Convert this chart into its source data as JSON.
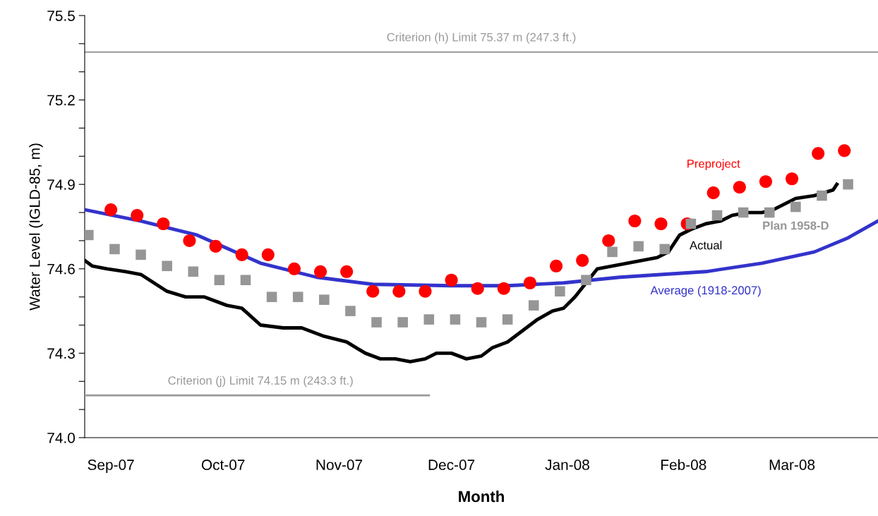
{
  "chart_data": {
    "type": "line",
    "xlabel": "Month",
    "ylabel": "Water Level (IGLD-85, m)",
    "xlim": [
      "2007-08-25",
      "2008-03-24"
    ],
    "xticks": [
      {
        "value": "2007-09-01",
        "label": "Sep-07"
      },
      {
        "value": "2007-10-01",
        "label": "Oct-07"
      },
      {
        "value": "2007-11-01",
        "label": "Nov-07"
      },
      {
        "value": "2007-12-01",
        "label": "Dec-07"
      },
      {
        "value": "2008-01-01",
        "label": "Jan-08"
      },
      {
        "value": "2008-02-01",
        "label": "Feb-08"
      },
      {
        "value": "2008-03-01",
        "label": "Mar-08"
      }
    ],
    "ylim": [
      74.0,
      75.5
    ],
    "yticks": [
      {
        "value": 74.0,
        "label": "74.0"
      },
      {
        "value": 74.1,
        "label": null
      },
      {
        "value": 74.2,
        "label": null
      },
      {
        "value": 74.3,
        "label": "74.3"
      },
      {
        "value": 74.4,
        "label": null
      },
      {
        "value": 74.5,
        "label": null
      },
      {
        "value": 74.6,
        "label": "74.6"
      },
      {
        "value": 74.7,
        "label": null
      },
      {
        "value": 74.8,
        "label": null
      },
      {
        "value": 74.9,
        "label": "74.9"
      },
      {
        "value": 75.0,
        "label": null
      },
      {
        "value": 75.1,
        "label": null
      },
      {
        "value": 75.2,
        "label": "75.2"
      },
      {
        "value": 75.3,
        "label": null
      },
      {
        "value": 75.4,
        "label": null
      },
      {
        "value": 75.5,
        "label": "75.5"
      }
    ],
    "grid": false,
    "legend": false,
    "series": [
      {
        "name": "Preproject",
        "type": "scatter",
        "marker": "circle",
        "color": "#ff0000",
        "x": [
          "2007-09-01",
          "2007-09-08",
          "2007-09-15",
          "2007-09-22",
          "2007-09-29",
          "2007-10-06",
          "2007-10-13",
          "2007-10-20",
          "2007-10-27",
          "2007-11-03",
          "2007-11-10",
          "2007-11-17",
          "2007-11-24",
          "2007-12-01",
          "2007-12-08",
          "2007-12-15",
          "2007-12-22",
          "2007-12-29",
          "2008-01-05",
          "2008-01-12",
          "2008-01-19",
          "2008-01-26",
          "2008-02-02",
          "2008-02-09",
          "2008-02-16",
          "2008-02-23",
          "2008-03-01",
          "2008-03-08",
          "2008-03-15"
        ],
        "values": [
          74.81,
          74.79,
          74.76,
          74.7,
          74.68,
          74.65,
          74.65,
          74.6,
          74.59,
          74.59,
          74.52,
          74.52,
          74.52,
          74.56,
          74.53,
          74.53,
          74.55,
          74.61,
          74.63,
          74.7,
          74.77,
          74.76,
          74.76,
          74.87,
          74.89,
          74.91,
          74.92,
          75.01,
          75.02
        ]
      },
      {
        "name": "Plan 1958-D",
        "type": "scatter",
        "marker": "square",
        "color": "#969696",
        "x": [
          "2007-08-26",
          "2007-09-02",
          "2007-09-09",
          "2007-09-16",
          "2007-09-23",
          "2007-09-30",
          "2007-10-07",
          "2007-10-14",
          "2007-10-21",
          "2007-10-28",
          "2007-11-04",
          "2007-11-11",
          "2007-11-18",
          "2007-11-25",
          "2007-12-02",
          "2007-12-09",
          "2007-12-16",
          "2007-12-23",
          "2007-12-30",
          "2008-01-06",
          "2008-01-13",
          "2008-01-20",
          "2008-01-27",
          "2008-02-03",
          "2008-02-10",
          "2008-02-17",
          "2008-02-24",
          "2008-03-02",
          "2008-03-09",
          "2008-03-16"
        ],
        "values": [
          74.72,
          74.67,
          74.65,
          74.61,
          74.59,
          74.56,
          74.56,
          74.5,
          74.5,
          74.49,
          74.45,
          74.41,
          74.41,
          74.42,
          74.42,
          74.41,
          74.42,
          74.47,
          74.52,
          74.56,
          74.66,
          74.68,
          74.67,
          74.76,
          74.79,
          74.8,
          74.8,
          74.82,
          74.86,
          74.9
        ]
      },
      {
        "name": "Actual",
        "marker": "none",
        "line_style": "solid",
        "color": "#000000",
        "x": [
          "2007-08-25",
          "2007-08-27",
          "2007-08-31",
          "2007-09-05",
          "2007-09-09",
          "2007-09-16",
          "2007-09-21",
          "2007-09-26",
          "2007-10-02",
          "2007-10-06",
          "2007-10-11",
          "2007-10-17",
          "2007-10-22",
          "2007-10-28",
          "2007-11-03",
          "2007-11-08",
          "2007-11-12",
          "2007-11-16",
          "2007-11-20",
          "2007-11-24",
          "2007-11-27",
          "2007-12-01",
          "2007-12-05",
          "2007-12-09",
          "2007-12-12",
          "2007-12-16",
          "2007-12-20",
          "2007-12-24",
          "2007-12-28",
          "2007-12-31",
          "2008-01-03",
          "2008-01-06",
          "2008-01-09",
          "2008-01-13",
          "2008-01-17",
          "2008-01-21",
          "2008-01-25",
          "2008-01-28",
          "2008-01-31",
          "2008-02-03",
          "2008-02-07",
          "2008-02-11",
          "2008-02-14",
          "2008-02-18",
          "2008-02-22",
          "2008-02-25",
          "2008-03-02",
          "2008-03-07",
          "2008-03-12",
          "2008-03-13"
        ],
        "values": [
          74.63,
          74.61,
          74.6,
          74.59,
          74.58,
          74.52,
          74.5,
          74.5,
          74.47,
          74.46,
          74.4,
          74.39,
          74.39,
          74.36,
          74.34,
          74.3,
          74.28,
          74.28,
          74.27,
          74.28,
          74.3,
          74.3,
          74.28,
          74.29,
          74.32,
          74.34,
          74.38,
          74.42,
          74.45,
          74.46,
          74.5,
          74.55,
          74.6,
          74.61,
          74.62,
          74.63,
          74.64,
          74.66,
          74.72,
          74.74,
          74.76,
          74.77,
          74.79,
          74.8,
          74.8,
          74.81,
          74.85,
          74.86,
          74.88,
          74.9
        ]
      },
      {
        "name": "Average (1918-2007)",
        "marker": "none",
        "line_style": "solid",
        "color": "#3333cc",
        "x": [
          "2007-08-25",
          "2007-09-09",
          "2007-09-24",
          "2007-10-11",
          "2007-10-26",
          "2007-11-10",
          "2007-12-01",
          "2007-12-16",
          "2007-12-31",
          "2008-01-15",
          "2008-02-07",
          "2008-02-22",
          "2008-03-07",
          "2008-03-16",
          "2008-03-24"
        ],
        "values": [
          74.81,
          74.77,
          74.72,
          74.62,
          74.57,
          74.545,
          74.54,
          74.54,
          74.55,
          74.57,
          74.59,
          74.62,
          74.66,
          74.71,
          74.77
        ]
      },
      {
        "marker": "none",
        "line_style": "solid",
        "color": "#999999",
        "x": [
          "2007-08-25",
          "2007-11-25"
        ],
        "values": [
          74.15,
          74.15
        ]
      }
    ],
    "ref_lines": [
      {
        "axis": "y",
        "value": 75.37,
        "label": "Criterion (h) Limit 75.37 m (247.3 ft.)",
        "color": "#999999",
        "line_style": "solid"
      }
    ],
    "annotations": [
      {
        "text": "Criterion (j) Limit 74.15 m (243.3 ft.)",
        "x": "2007-10-11",
        "y": 74.15
      }
    ]
  }
}
